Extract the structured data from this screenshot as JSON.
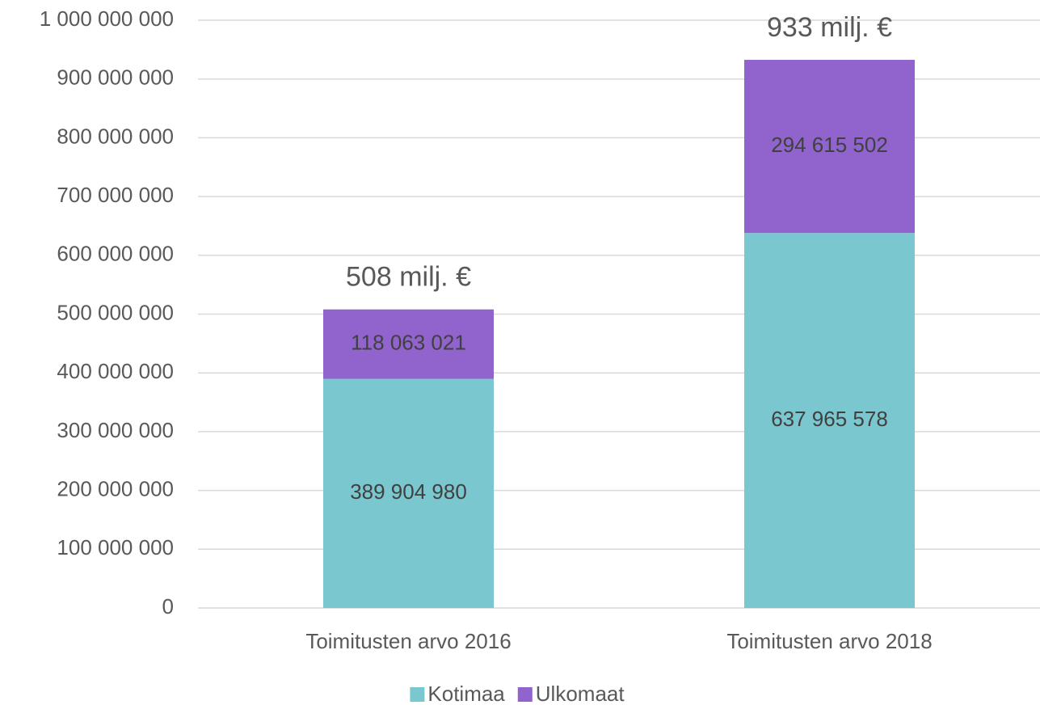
{
  "chart_data": {
    "type": "stacked_bar",
    "categories": [
      "Toimitusten arvo 2016",
      "Toimitusten arvo 2018"
    ],
    "series": [
      {
        "name": "Kotimaa",
        "color": "#7ac7cf",
        "values": [
          389904980,
          637965578
        ],
        "value_labels": [
          "389 904 980",
          "637 965 578"
        ]
      },
      {
        "name": "Ulkomaat",
        "color": "#9063cd",
        "values": [
          118063021,
          294615502
        ],
        "value_labels": [
          "118 063 021",
          "294 615 502"
        ]
      }
    ],
    "total_labels": [
      "508 milj. €",
      "933 milj. €"
    ],
    "ylim": [
      0,
      1000000000
    ],
    "yticks": [
      0,
      {
        "value": 100000000,
        "label": "100 000 000"
      },
      {
        "value": 200000000,
        "label": "200 000 000"
      },
      {
        "value": 300000000,
        "label": "300 000 000"
      },
      {
        "value": 400000000,
        "label": "400 000 000"
      },
      {
        "value": 500000000,
        "label": "500 000 000"
      },
      {
        "value": 600000000,
        "label": "600 000 000"
      },
      {
        "value": 700000000,
        "label": "700 000 000"
      },
      {
        "value": 800000000,
        "label": "800 000 000"
      },
      {
        "value": 900000000,
        "label": "900 000 000"
      },
      {
        "value": 1000000000,
        "label": "1 000 000 000"
      }
    ],
    "grid": true,
    "legend": "bottom"
  }
}
